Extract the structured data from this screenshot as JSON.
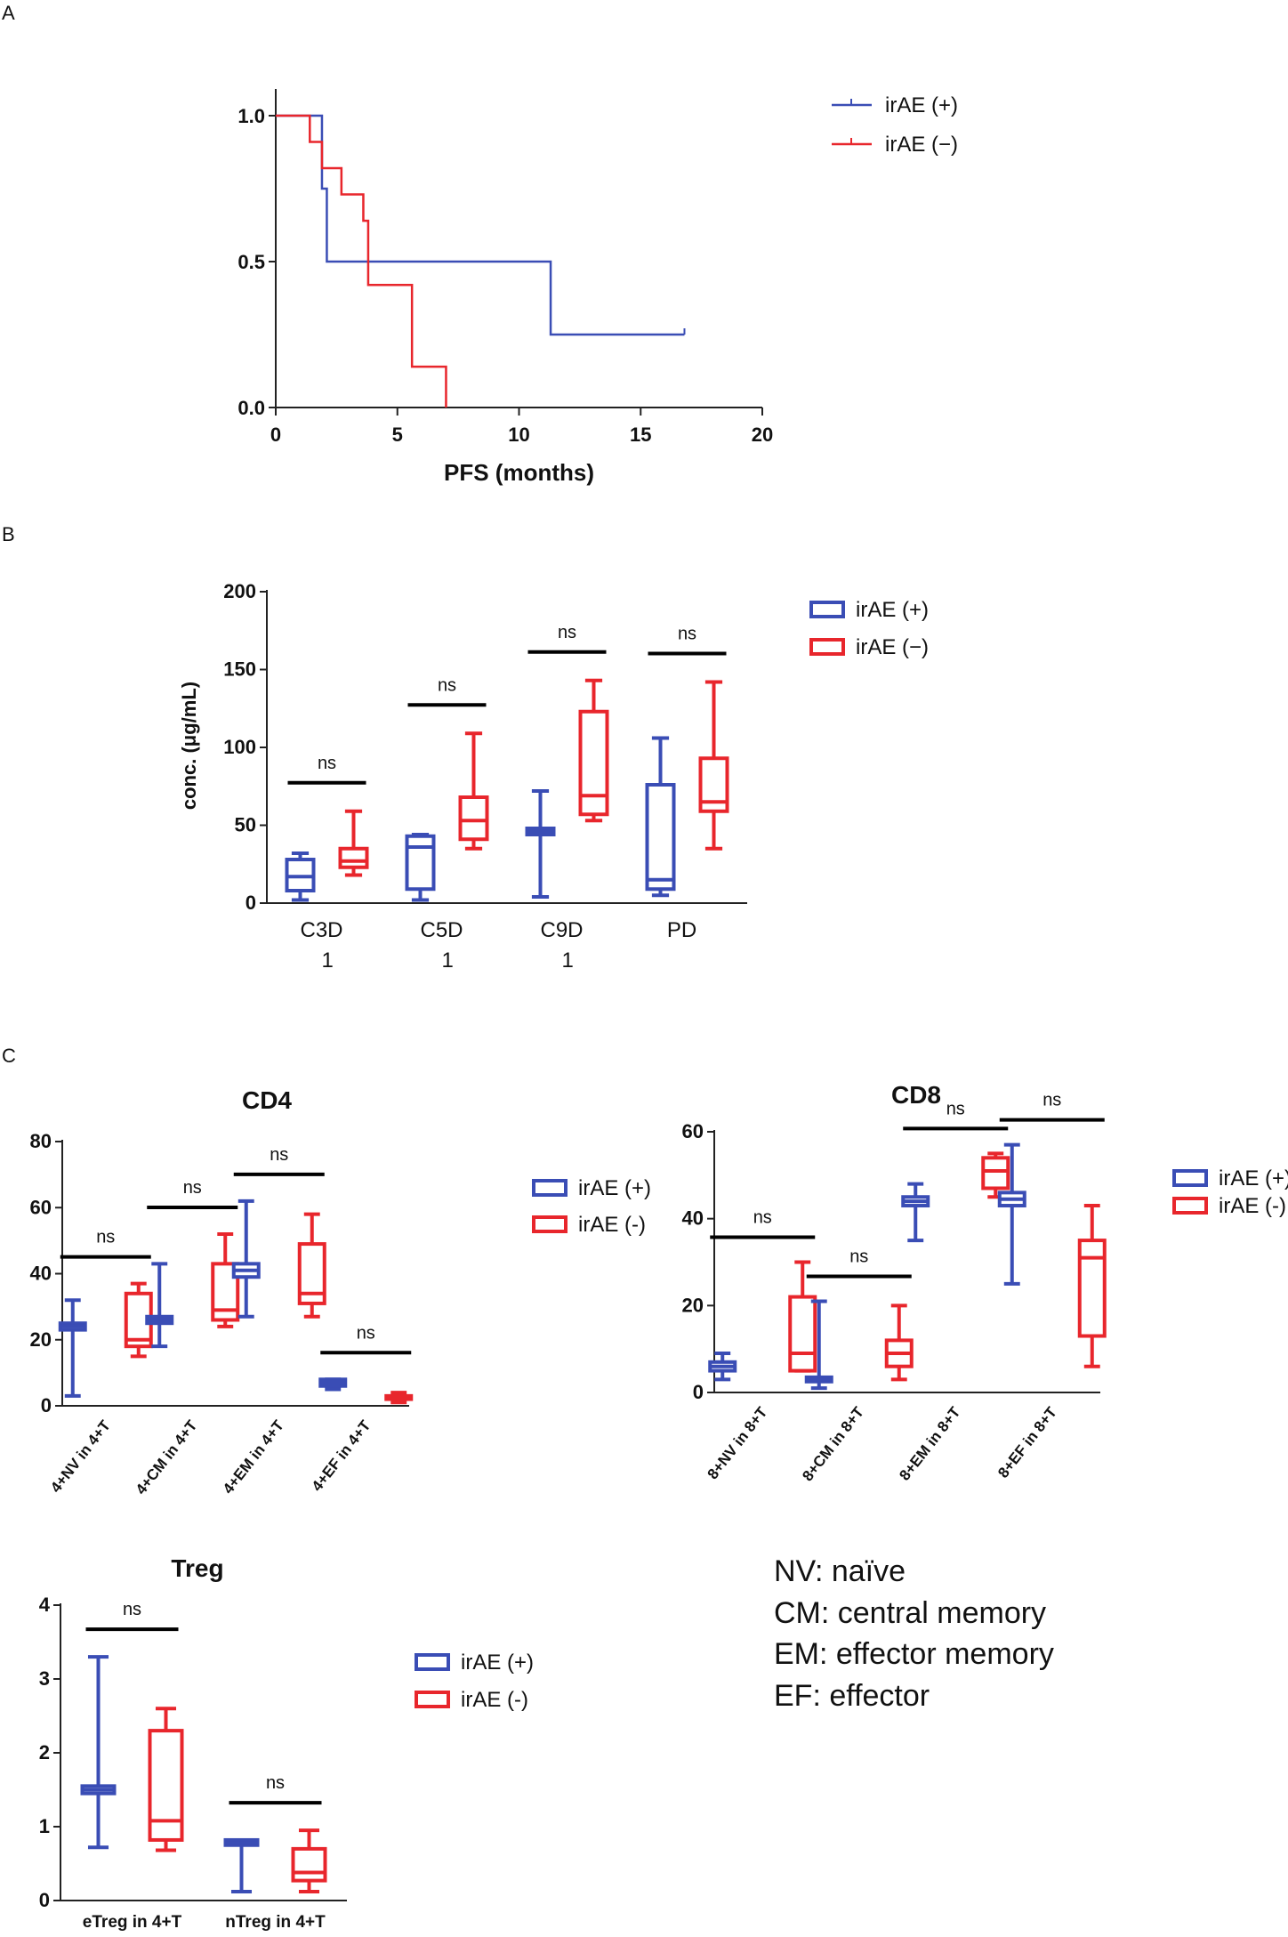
{
  "panels": {
    "A": "A",
    "B": "B",
    "C": "C"
  },
  "colors": {
    "pos": "#3a4db5",
    "neg": "#e8262c",
    "axis": "#222222"
  },
  "chart_data": [
    {
      "id": "A",
      "type": "line",
      "xlabel": "PFS (months)",
      "ylabel": "",
      "xlim": [
        0,
        20
      ],
      "ylim": [
        0,
        1.0
      ],
      "xticks": [
        0,
        5,
        10,
        15,
        20
      ],
      "yticks": [
        0.0,
        0.5,
        1.0
      ],
      "ytick_labels": [
        "0.0",
        "0.5",
        "1.0"
      ],
      "legend": [
        "irAE (+)",
        "irAE (−)"
      ],
      "series": [
        {
          "name": "irAE (+)",
          "x": [
            0,
            1.9,
            1.9,
            2.1,
            2.1,
            11.3,
            11.3,
            16.8
          ],
          "y": [
            1.0,
            1.0,
            0.75,
            0.75,
            0.5,
            0.5,
            0.25,
            0.25
          ]
        },
        {
          "name": "irAE (−)",
          "x": [
            0,
            1.4,
            1.4,
            1.9,
            1.9,
            2.7,
            2.7,
            3.6,
            3.6,
            3.8,
            3.8,
            5.6,
            5.6,
            7.0,
            7.0
          ],
          "y": [
            1.0,
            1.0,
            0.91,
            0.91,
            0.82,
            0.82,
            0.73,
            0.73,
            0.64,
            0.64,
            0.42,
            0.42,
            0.14,
            0.14,
            0.0
          ]
        }
      ]
    },
    {
      "id": "B",
      "type": "box",
      "title": "",
      "ylabel": "conc. (μg/mL)",
      "ylim": [
        0,
        200
      ],
      "yticks": [
        0,
        50,
        100,
        150,
        200
      ],
      "categories": [
        [
          "C3D",
          "1"
        ],
        [
          "C5D",
          "1"
        ],
        [
          "C9D",
          "1"
        ],
        [
          "PD"
        ]
      ],
      "legend": [
        "irAE (+)",
        "irAE (−)"
      ],
      "significance": [
        "ns",
        "ns",
        "ns",
        "ns"
      ],
      "series": [
        {
          "name": "irAE (+)",
          "boxes": [
            {
              "min": 2,
              "q1": 8,
              "median": 17,
              "q3": 28,
              "max": 32
            },
            {
              "min": 2,
              "q1": 9,
              "median": 36,
              "q3": 43,
              "max": 44
            },
            {
              "min": 4,
              "q1": 44,
              "median": 46,
              "q3": 48,
              "max": 72
            },
            {
              "min": 5,
              "q1": 9,
              "median": 15,
              "q3": 76,
              "max": 106
            }
          ]
        },
        {
          "name": "irAE (−)",
          "boxes": [
            {
              "min": 18,
              "q1": 23,
              "median": 27,
              "q3": 35,
              "max": 59
            },
            {
              "min": 35,
              "q1": 41,
              "median": 53,
              "q3": 68,
              "max": 109
            },
            {
              "min": 53,
              "q1": 57,
              "median": 69,
              "q3": 123,
              "max": 143
            },
            {
              "min": 35,
              "q1": 59,
              "median": 65,
              "q3": 93,
              "max": 142
            }
          ]
        }
      ]
    },
    {
      "id": "C-CD4",
      "type": "box",
      "title": "CD4",
      "ylim": [
        0,
        80
      ],
      "yticks": [
        0,
        20,
        40,
        60,
        80
      ],
      "categories": [
        "4+NV in 4+T",
        "4+CM in 4+T",
        "4+EM in 4+T",
        "4+EF in 4+T"
      ],
      "legend": [
        "irAE (+)",
        "irAE (-)"
      ],
      "significance": [
        "ns",
        "ns",
        "ns",
        "ns"
      ],
      "series": [
        {
          "name": "irAE (+)",
          "boxes": [
            {
              "min": 3,
              "q1": 23,
              "median": 24,
              "q3": 25,
              "max": 32
            },
            {
              "min": 18,
              "q1": 25,
              "median": 26,
              "q3": 27,
              "max": 43
            },
            {
              "min": 27,
              "q1": 39,
              "median": 41,
              "q3": 43,
              "max": 62
            },
            {
              "min": 5,
              "q1": 6,
              "median": 7,
              "q3": 8,
              "max": 8
            }
          ]
        },
        {
          "name": "irAE (-)",
          "boxes": [
            {
              "min": 15,
              "q1": 18,
              "median": 20,
              "q3": 34,
              "max": 37
            },
            {
              "min": 24,
              "q1": 26,
              "median": 29,
              "q3": 43,
              "max": 52
            },
            {
              "min": 27,
              "q1": 31,
              "median": 34,
              "q3": 49,
              "max": 58
            },
            {
              "min": 1,
              "q1": 2,
              "median": 2.5,
              "q3": 3,
              "max": 4
            }
          ]
        }
      ]
    },
    {
      "id": "C-CD8",
      "type": "box",
      "title": "CD8",
      "ylim": [
        0,
        60
      ],
      "yticks": [
        0,
        20,
        40,
        60
      ],
      "categories": [
        "8+NV in 8+T",
        "8+CM in 8+T",
        "8+EM in 8+T",
        "8+EF in 8+T"
      ],
      "legend": [
        "irAE (+)",
        "irAE (-)"
      ],
      "significance": [
        "ns",
        "ns",
        "ns",
        "ns"
      ],
      "series": [
        {
          "name": "irAE (+)",
          "boxes": [
            {
              "min": 3,
              "q1": 5,
              "median": 6,
              "q3": 7,
              "max": 9
            },
            {
              "min": 1,
              "q1": 2.5,
              "median": 3,
              "q3": 3.5,
              "max": 21
            },
            {
              "min": 35,
              "q1": 43,
              "median": 44,
              "q3": 45,
              "max": 48
            },
            {
              "min": 25,
              "q1": 43,
              "median": 44.5,
              "q3": 46,
              "max": 57
            }
          ]
        },
        {
          "name": "irAE (-)",
          "boxes": [
            {
              "min": 5,
              "q1": 5,
              "median": 9,
              "q3": 22,
              "max": 30
            },
            {
              "min": 3,
              "q1": 6,
              "median": 9,
              "q3": 12,
              "max": 20
            },
            {
              "min": 45,
              "q1": 47,
              "median": 51,
              "q3": 54,
              "max": 55
            },
            {
              "min": 6,
              "q1": 13,
              "median": 31,
              "q3": 35,
              "max": 43
            }
          ]
        }
      ]
    },
    {
      "id": "C-Treg",
      "type": "box",
      "title": "Treg",
      "ylim": [
        0,
        4
      ],
      "yticks": [
        0,
        1,
        2,
        3,
        4
      ],
      "categories": [
        "eTreg in 4+T",
        "nTreg in 4+T"
      ],
      "legend": [
        "irAE (+)",
        "irAE (-)"
      ],
      "significance": [
        "ns",
        "ns"
      ],
      "series": [
        {
          "name": "irAE (+)",
          "boxes": [
            {
              "min": 0.72,
              "q1": 1.45,
              "median": 1.5,
              "q3": 1.55,
              "max": 3.3
            },
            {
              "min": 0.12,
              "q1": 0.75,
              "median": 0.78,
              "q3": 0.82,
              "max": 0.82
            }
          ]
        },
        {
          "name": "irAE (-)",
          "boxes": [
            {
              "min": 0.68,
              "q1": 0.82,
              "median": 1.08,
              "q3": 2.3,
              "max": 2.6
            },
            {
              "min": 0.12,
              "q1": 0.27,
              "median": 0.38,
              "q3": 0.7,
              "max": 0.95
            }
          ]
        }
      ]
    }
  ],
  "glossary": [
    "NV: naïve",
    "CM: central memory",
    "EM: effector memory",
    "EF: effector"
  ]
}
